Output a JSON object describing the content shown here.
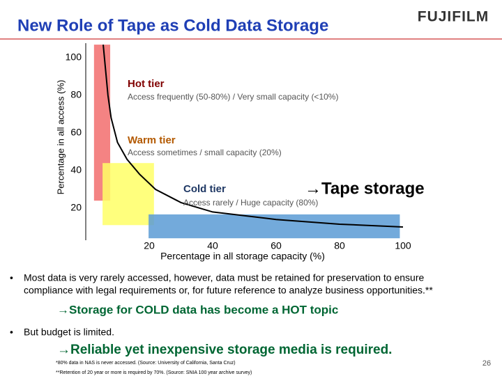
{
  "slide": {
    "title": "New Role of Tape as Cold Data Storage",
    "logo": "FUJIFILM",
    "bullets": [
      "Most data is very rarely accessed, however, data must be retained for preservation to ensure",
      "compliance with legal requirements or, for future reference to analyze business opportunities.**",
      "But budget is limited."
    ],
    "highlights": [
      "→Storage for COLD data has become a HOT topic",
      "→Reliable yet inexpensive storage media is required."
    ],
    "footnotes": [
      "*80% data in NAS is never accessed. (Source: University of California, Santa Cruz)",
      "**Retention of 20 year or more is required by 70%. (Source: SNIA 100 year archive survey)"
    ],
    "page_number": 26
  },
  "chart_data": {
    "type": "line",
    "x_label": "Percentage in all storage capacity (%)",
    "y_label": "Percentage in all access (%)",
    "x": [
      5.5,
      7,
      8,
      10,
      13,
      17,
      22,
      30,
      40,
      60,
      80,
      100
    ],
    "values": [
      107,
      80,
      68,
      55,
      46,
      38,
      30,
      23,
      18,
      14,
      11.5,
      10
    ],
    "color": "#000000",
    "xlim": [
      0,
      100
    ],
    "ylim": [
      0,
      110
    ],
    "xticks": [
      20,
      40,
      60,
      80,
      100
    ],
    "yticks": [
      20,
      40,
      60,
      80,
      100
    ],
    "regions": [
      {
        "x": [
          2.6,
          7.7
        ],
        "y": [
          24,
          107
        ],
        "color": "#f26d6d"
      },
      {
        "x": [
          5.3,
          21.5
        ],
        "y": [
          11,
          44
        ],
        "color": "#ffff66"
      },
      {
        "x": [
          19.8,
          99
        ],
        "y": [
          4,
          16.7
        ],
        "color": "#5b9bd5"
      }
    ],
    "annotations": [
      "Hot tier",
      "Access frequently (50-80%) / Very small capacity (<10%)",
      "Warm tier",
      "Access sometimes / small capacity (20%)",
      "Cold tier",
      "Access rarely / Huge capacity (80%)",
      "→Tape storage"
    ]
  }
}
